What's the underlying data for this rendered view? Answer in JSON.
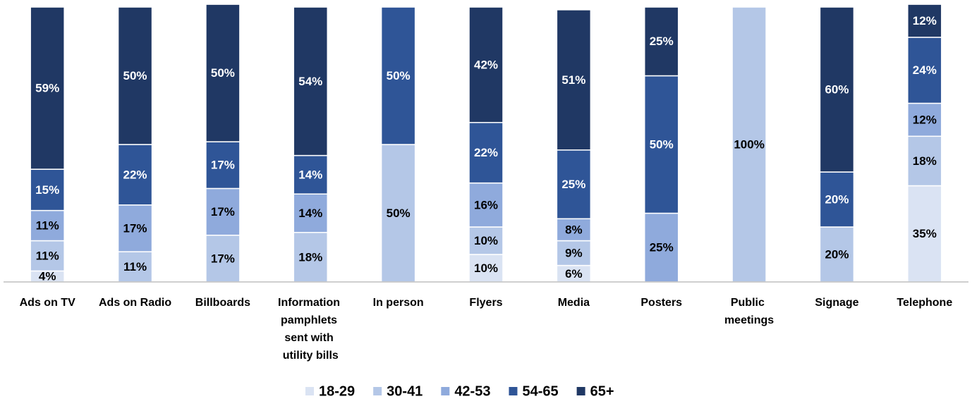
{
  "chart_data": {
    "type": "stacked_bar",
    "categories": [
      "Ads on TV",
      "Ads on Radio",
      "Billboards",
      "Information pamphlets sent with utility bills",
      "In person",
      "Flyers",
      "Media",
      "Posters",
      "Public meetings",
      "Signage",
      "Telephone"
    ],
    "ylim": [
      0,
      100
    ],
    "series": [
      {
        "name": "18-29",
        "color": "#dae3f3",
        "values": [
          4,
          null,
          null,
          null,
          null,
          10,
          6,
          null,
          null,
          null,
          35
        ],
        "value_labels": [
          "4%",
          null,
          null,
          null,
          null,
          "10%",
          "6%",
          null,
          null,
          null,
          "35%"
        ]
      },
      {
        "name": "30-41",
        "color": "#b4c7e7",
        "values": [
          11,
          11,
          17,
          18,
          50,
          10,
          9,
          null,
          100,
          20,
          18
        ],
        "value_labels": [
          "11%",
          "11%",
          "17%",
          "18%",
          "50%",
          "10%",
          "9%",
          null,
          "100%",
          "20%",
          "18%"
        ]
      },
      {
        "name": "42-53",
        "color": "#8faadc",
        "values": [
          11,
          17,
          17,
          14,
          null,
          16,
          8,
          25,
          null,
          null,
          12
        ],
        "value_labels": [
          "11%",
          "17%",
          "17%",
          "14%",
          null,
          "16%",
          "8%",
          "25%",
          null,
          null,
          "12%"
        ]
      },
      {
        "name": "54-65",
        "color": "#2f5597",
        "values": [
          15,
          22,
          17,
          14,
          50,
          22,
          25,
          50,
          null,
          20,
          24
        ],
        "value_labels": [
          "15%",
          "22%",
          "17%",
          "14%",
          "50%",
          "22%",
          "25%",
          "50%",
          null,
          "20%",
          "24%"
        ]
      },
      {
        "name": "65+",
        "color": "#203864",
        "values": [
          59,
          50,
          50,
          54,
          null,
          42,
          51,
          25,
          null,
          60,
          12
        ],
        "value_labels": [
          "59%",
          "50%",
          "50%",
          "54%",
          null,
          "42%",
          "51%",
          "25%",
          null,
          "60%",
          "12%"
        ]
      }
    ]
  }
}
